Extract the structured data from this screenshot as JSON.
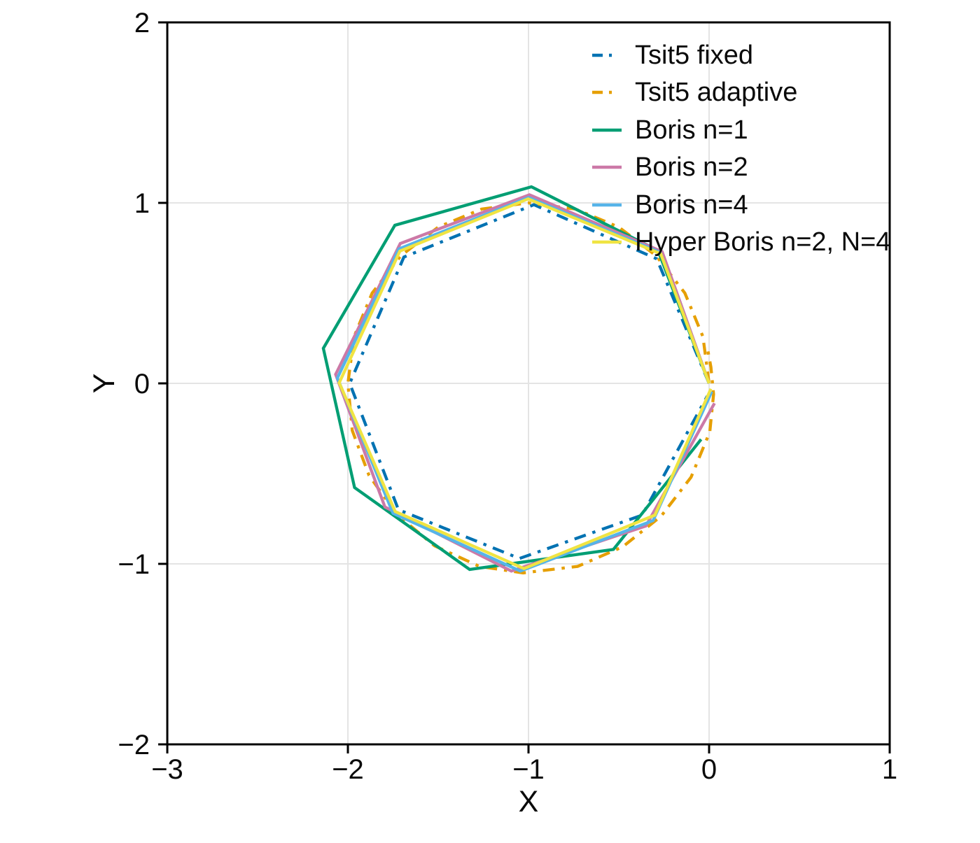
{
  "chart_data": {
    "type": "line",
    "title": "",
    "xlabel": "X",
    "ylabel": "Y",
    "xlim": [
      -3,
      1
    ],
    "ylim": [
      -2,
      2
    ],
    "xticks": {
      "values": [
        -3,
        -2,
        -1,
        0,
        1
      ],
      "labels": [
        "−3",
        "−2",
        "−1",
        "0",
        "1"
      ]
    },
    "yticks": {
      "values": [
        -2,
        -1,
        0,
        1,
        2
      ],
      "labels": [
        "−2",
        "−1",
        "0",
        "1",
        "2"
      ]
    },
    "grid": true,
    "legend": {
      "position": "top-right-inside",
      "frame": false
    },
    "series": [
      {
        "id": "tsit5-fixed",
        "name": "Tsit5 fixed",
        "color": "#0072B2",
        "linestyle": "dashdot",
        "x": [
          0.0,
          -0.29,
          -0.97,
          -1.69,
          -1.99,
          -1.72,
          -1.05,
          -0.37,
          -0.01
        ],
        "y": [
          0.0,
          0.69,
          0.99,
          0.7,
          0.0,
          -0.7,
          -0.97,
          -0.73,
          -0.07
        ]
      },
      {
        "id": "tsit5-adaptive",
        "name": "Tsit5 adaptive",
        "color": "#E69F00",
        "linestyle": "dashdot",
        "x": [
          0.0,
          -0.034,
          -0.134,
          -0.293,
          -0.5,
          -0.741,
          -1.0,
          -1.259,
          -1.5,
          -1.707,
          -1.866,
          -1.966,
          -2.0,
          -1.976,
          -1.883,
          -1.728,
          -1.52,
          -1.272,
          -1.03,
          -0.728,
          -0.478,
          -0.265,
          -0.1,
          0.004,
          0.025,
          0.01,
          -0.01
        ],
        "y": [
          0.0,
          0.259,
          0.5,
          0.707,
          0.866,
          0.966,
          1.0,
          0.966,
          0.866,
          0.707,
          0.5,
          0.259,
          0.0,
          -0.261,
          -0.51,
          -0.728,
          -0.9,
          -1.014,
          -1.05,
          -1.014,
          -0.905,
          -0.735,
          -0.52,
          -0.269,
          -0.06,
          0.09,
          0.2
        ]
      },
      {
        "id": "boris-n1",
        "name": "Boris n=1",
        "color": "#009E73",
        "linestyle": "solid",
        "x": [
          0.0,
          -0.283,
          -0.984,
          -1.74,
          -2.136,
          -1.963,
          -1.326,
          -0.53,
          -0.044
        ],
        "y": [
          0.0,
          0.736,
          1.089,
          0.876,
          0.194,
          -0.577,
          -1.031,
          -0.92,
          -0.31
        ]
      },
      {
        "id": "boris-n2",
        "name": "Boris n=2",
        "color": "#CC79A7",
        "linestyle": "solid",
        "x": [
          0.0,
          -0.26,
          -0.995,
          -1.71,
          -2.068,
          -1.795,
          -1.095,
          -0.35,
          0.03
        ],
        "y": [
          0.0,
          0.73,
          1.045,
          0.775,
          0.05,
          -0.685,
          -1.04,
          -0.79,
          -0.11
        ]
      },
      {
        "id": "boris-n4",
        "name": "Boris n=4",
        "color": "#56B4E9",
        "linestyle": "solid",
        "x": [
          0.0,
          -0.27,
          -1.0,
          -1.718,
          -2.058,
          -1.75,
          -1.045,
          -0.31,
          0.015
        ],
        "y": [
          0.0,
          0.725,
          1.03,
          0.745,
          0.03,
          -0.72,
          -1.04,
          -0.76,
          -0.045
        ]
      },
      {
        "id": "hyper-boris",
        "name": "Hyper Boris n=2, N=4",
        "color": "#F0E442",
        "linestyle": "solid",
        "x": [
          0.0,
          -0.268,
          -1.002,
          -1.712,
          -2.048,
          -1.738,
          -1.025,
          -0.3,
          0.01
        ],
        "y": [
          0.0,
          0.718,
          1.022,
          0.733,
          0.003,
          -0.71,
          -1.026,
          -0.73,
          -0.03
        ]
      }
    ]
  },
  "style": {
    "background": "#FFFFFF",
    "grid_color": "#E4E4E4",
    "axis_color": "#000000",
    "text_color": "#0A0A0A"
  }
}
